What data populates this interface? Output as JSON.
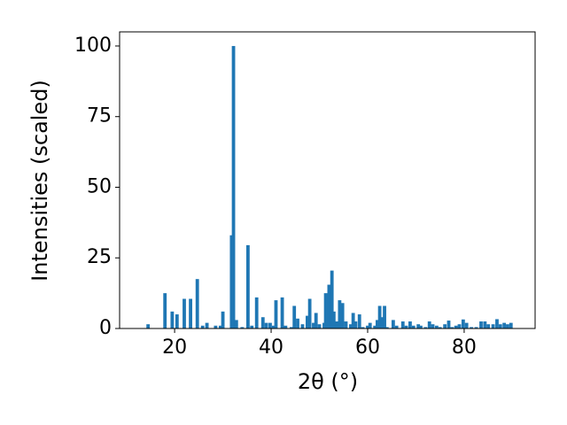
{
  "chart_data": {
    "type": "bar",
    "x_label": "2θ (°)",
    "y_label": "Intensities (scaled)",
    "color": "#1f77b4",
    "x": [
      14.5,
      18,
      19.5,
      20.5,
      22,
      23.3,
      24.7,
      25.8,
      26.7,
      28.5,
      29.5,
      30,
      31.8,
      32.2,
      32.8,
      34,
      35.2,
      36,
      37,
      38.3,
      39,
      39.8,
      40.5,
      41,
      42.3,
      43,
      44.2,
      44.8,
      45.5,
      46.5,
      47.5,
      48,
      48.8,
      49.3,
      50,
      51,
      51.3,
      52,
      52.6,
      53,
      53.6,
      54.2,
      54.8,
      55.5,
      56.5,
      57,
      57.5,
      58.3,
      59,
      60,
      60.5,
      61.5,
      62,
      62.5,
      63,
      63.5,
      64,
      65.3,
      66,
      67.3,
      68,
      68.8,
      69.5,
      70.5,
      71,
      72,
      72.8,
      73.5,
      74.3,
      75,
      76,
      76.8,
      77.5,
      78.3,
      79,
      79.8,
      80.5,
      81.5,
      82.5,
      83.5,
      84.3,
      85,
      86,
      86.8,
      87.5,
      88.3,
      89,
      89.7
    ],
    "values": [
      1.5,
      12.5,
      6,
      5,
      10.5,
      10.5,
      17.5,
      1,
      2,
      1,
      1,
      6,
      33,
      100,
      3,
      0.5,
      29.5,
      1,
      11,
      4,
      2,
      2,
      1,
      10,
      11,
      1,
      0.5,
      8,
      3.5,
      1.5,
      4.5,
      10.5,
      2,
      5.5,
      1.5,
      2,
      12.5,
      15.5,
      20.5,
      6,
      2.5,
      10,
      9,
      2.5,
      1.5,
      5.5,
      2.5,
      5,
      0.5,
      1,
      2,
      1,
      3,
      8,
      4,
      8,
      0.5,
      3,
      1,
      2.5,
      1,
      2.5,
      1,
      1.5,
      1,
      0.5,
      2.5,
      1.5,
      1,
      0.5,
      1.5,
      2.8,
      0.5,
      1,
      1.5,
      3.2,
      2,
      0.5,
      0.5,
      2.5,
      2.5,
      1.5,
      1.5,
      3.3,
      1.5,
      2,
      1.5,
      2
    ],
    "xlim": [
      8.6,
      94.7
    ],
    "ylim": [
      0,
      105
    ],
    "xticks": [
      20,
      40,
      60,
      80
    ],
    "yticks": [
      0,
      25,
      50,
      75,
      100
    ]
  }
}
